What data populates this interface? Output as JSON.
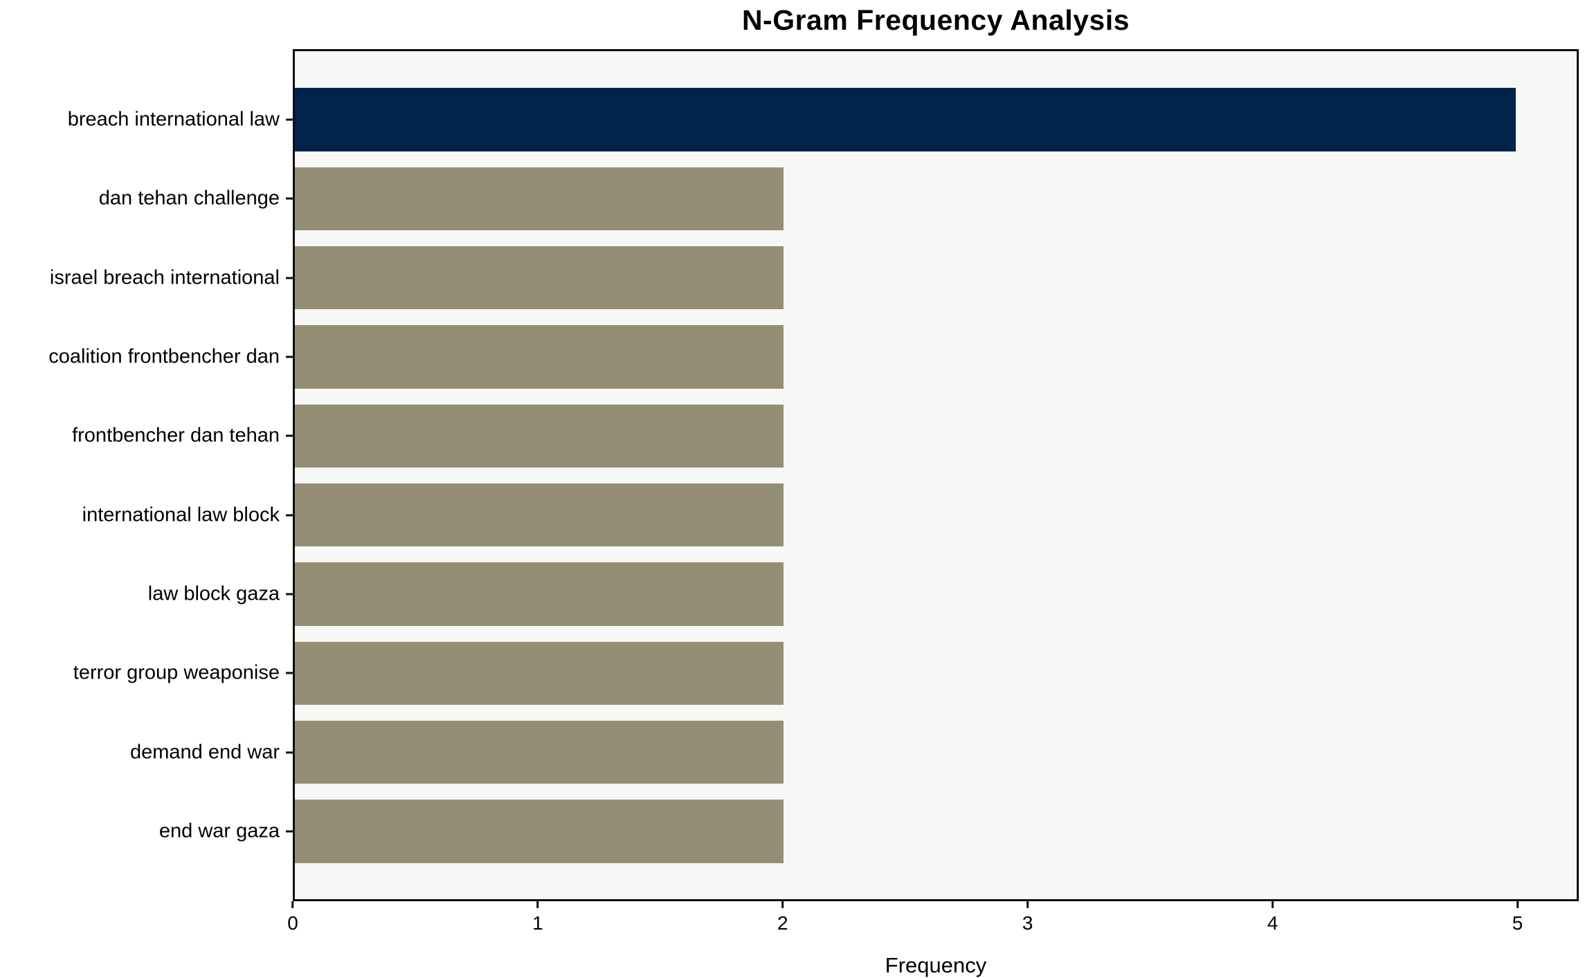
{
  "chart_data": {
    "type": "bar",
    "orientation": "horizontal",
    "title": "N-Gram Frequency Analysis",
    "xlabel": "Frequency",
    "ylabel": "",
    "categories": [
      "breach international law",
      "dan tehan challenge",
      "israel breach international",
      "coalition frontbencher dan",
      "frontbencher dan tehan",
      "international law block",
      "law block gaza",
      "terror group weaponise",
      "demand end war",
      "end war gaza"
    ],
    "values": [
      5,
      2,
      2,
      2,
      2,
      2,
      2,
      2,
      2,
      2
    ],
    "highlight_index": 0,
    "xticks": [
      "0",
      "1",
      "2",
      "3",
      "4",
      "5"
    ],
    "xlim": [
      0,
      5.25
    ],
    "grid": false,
    "legend": "none",
    "colors": {
      "highlight_bar": "#02234c",
      "default_bar": "#948e74",
      "plot_background": "#f7f7f6",
      "figure_background": "#ffffff",
      "spine": "#0d0d0d",
      "text": "#000000"
    }
  }
}
